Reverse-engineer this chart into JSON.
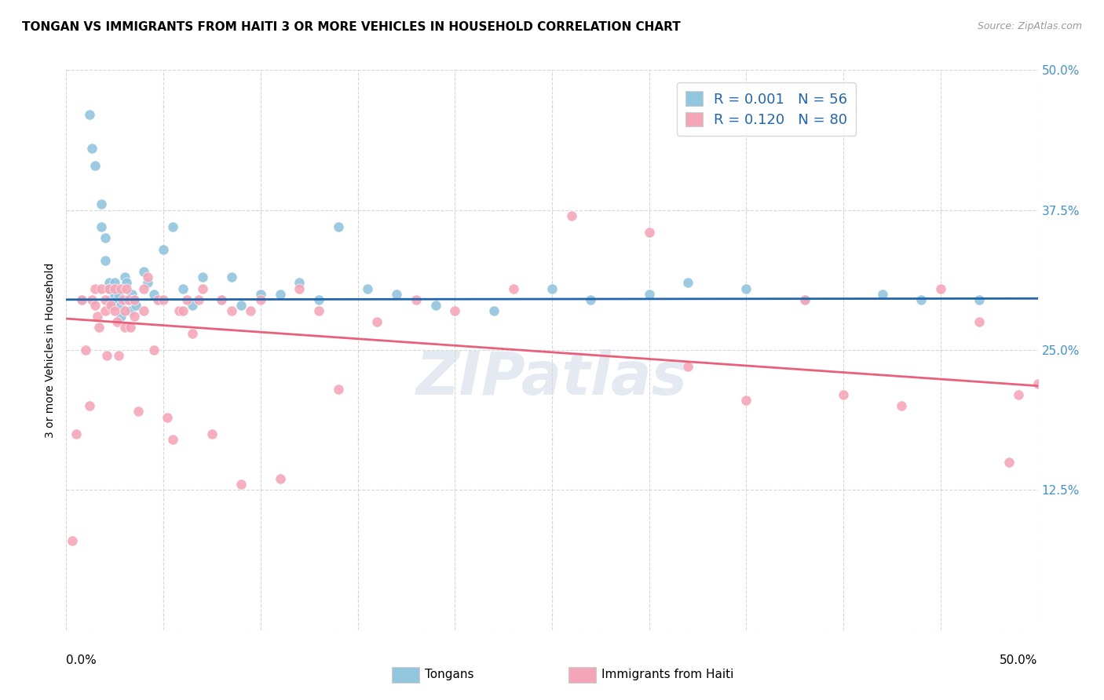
{
  "title": "TONGAN VS IMMIGRANTS FROM HAITI 3 OR MORE VEHICLES IN HOUSEHOLD CORRELATION CHART",
  "source": "Source: ZipAtlas.com",
  "ylabel": "3 or more Vehicles in Household",
  "ytick_values": [
    0.0,
    0.125,
    0.25,
    0.375,
    0.5
  ],
  "ytick_labels_right": [
    "",
    "12.5%",
    "25.0%",
    "37.5%",
    "50.0%"
  ],
  "xmin": 0.0,
  "xmax": 0.5,
  "ymin": 0.0,
  "ymax": 0.5,
  "blue_color": "#92c5de",
  "pink_color": "#f4a6b8",
  "blue_line_color": "#2166ac",
  "pink_line_color": "#e8607a",
  "legend_text_color": "#2166ac",
  "right_axis_color": "#4292c6",
  "watermark": "ZIPatlas",
  "blue_scatter_x": [
    0.008,
    0.012,
    0.013,
    0.015,
    0.018,
    0.018,
    0.02,
    0.02,
    0.022,
    0.022,
    0.023,
    0.024,
    0.025,
    0.025,
    0.026,
    0.027,
    0.028,
    0.028,
    0.03,
    0.03,
    0.031,
    0.032,
    0.033,
    0.034,
    0.035,
    0.036,
    0.04,
    0.042,
    0.045,
    0.048,
    0.05,
    0.055,
    0.06,
    0.065,
    0.07,
    0.08,
    0.085,
    0.09,
    0.1,
    0.11,
    0.12,
    0.13,
    0.14,
    0.155,
    0.17,
    0.19,
    0.22,
    0.25,
    0.27,
    0.3,
    0.32,
    0.35,
    0.38,
    0.42,
    0.44,
    0.47
  ],
  "blue_scatter_y": [
    0.295,
    0.46,
    0.43,
    0.415,
    0.38,
    0.36,
    0.35,
    0.33,
    0.31,
    0.305,
    0.295,
    0.29,
    0.31,
    0.3,
    0.295,
    0.3,
    0.29,
    0.28,
    0.315,
    0.295,
    0.31,
    0.295,
    0.285,
    0.3,
    0.295,
    0.29,
    0.32,
    0.31,
    0.3,
    0.295,
    0.34,
    0.36,
    0.305,
    0.29,
    0.315,
    0.295,
    0.315,
    0.29,
    0.3,
    0.3,
    0.31,
    0.295,
    0.36,
    0.305,
    0.3,
    0.29,
    0.285,
    0.305,
    0.295,
    0.3,
    0.31,
    0.305,
    0.295,
    0.3,
    0.295,
    0.295
  ],
  "pink_scatter_x": [
    0.003,
    0.005,
    0.008,
    0.01,
    0.012,
    0.013,
    0.015,
    0.015,
    0.016,
    0.017,
    0.018,
    0.02,
    0.02,
    0.021,
    0.022,
    0.023,
    0.025,
    0.025,
    0.026,
    0.027,
    0.028,
    0.029,
    0.03,
    0.03,
    0.031,
    0.032,
    0.033,
    0.035,
    0.035,
    0.037,
    0.04,
    0.04,
    0.042,
    0.045,
    0.047,
    0.05,
    0.052,
    0.055,
    0.058,
    0.06,
    0.062,
    0.065,
    0.068,
    0.07,
    0.075,
    0.08,
    0.085,
    0.09,
    0.095,
    0.1,
    0.11,
    0.12,
    0.13,
    0.14,
    0.16,
    0.18,
    0.2,
    0.23,
    0.26,
    0.3,
    0.32,
    0.35,
    0.38,
    0.4,
    0.43,
    0.45,
    0.47,
    0.485,
    0.49,
    0.5
  ],
  "pink_scatter_y": [
    0.08,
    0.175,
    0.295,
    0.25,
    0.2,
    0.295,
    0.305,
    0.29,
    0.28,
    0.27,
    0.305,
    0.295,
    0.285,
    0.245,
    0.305,
    0.29,
    0.305,
    0.285,
    0.275,
    0.245,
    0.305,
    0.295,
    0.285,
    0.27,
    0.305,
    0.295,
    0.27,
    0.295,
    0.28,
    0.195,
    0.305,
    0.285,
    0.315,
    0.25,
    0.295,
    0.295,
    0.19,
    0.17,
    0.285,
    0.285,
    0.295,
    0.265,
    0.295,
    0.305,
    0.175,
    0.295,
    0.285,
    0.13,
    0.285,
    0.295,
    0.135,
    0.305,
    0.285,
    0.215,
    0.275,
    0.295,
    0.285,
    0.305,
    0.37,
    0.355,
    0.235,
    0.205,
    0.295,
    0.21,
    0.2,
    0.305,
    0.275,
    0.15,
    0.21,
    0.22
  ],
  "blue_trend_x": [
    0.0,
    0.5
  ],
  "blue_trend_y": [
    0.295,
    0.296
  ],
  "pink_trend_x": [
    0.0,
    0.5
  ],
  "pink_trend_y": [
    0.278,
    0.218
  ],
  "grid_color": "#cccccc",
  "background_color": "#ffffff"
}
